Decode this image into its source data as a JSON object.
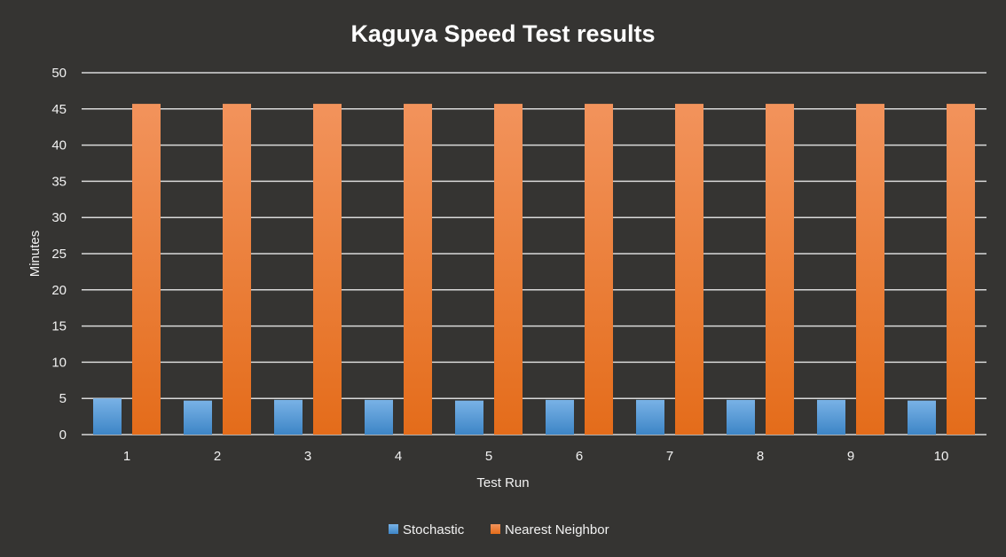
{
  "chart_data": {
    "type": "bar",
    "title": "Kaguya Speed Test results",
    "xlabel": "Test Run",
    "ylabel": "Minutes",
    "ylim": [
      0,
      50
    ],
    "yticks": [
      0,
      5,
      10,
      15,
      20,
      25,
      30,
      35,
      40,
      45,
      50
    ],
    "categories": [
      "1",
      "2",
      "3",
      "4",
      "5",
      "6",
      "7",
      "8",
      "9",
      "10"
    ],
    "series": [
      {
        "name": "Stochastic",
        "color": "#5b9bd5",
        "values": [
          5.0,
          4.7,
          4.8,
          4.8,
          4.7,
          4.8,
          4.8,
          4.8,
          4.8,
          4.7
        ]
      },
      {
        "name": "Nearest Neighbor",
        "color": "#ed7d31",
        "values": [
          45.7,
          45.7,
          45.7,
          45.7,
          45.7,
          45.7,
          45.7,
          45.7,
          45.7,
          45.7
        ]
      }
    ],
    "grid": true,
    "legend_position": "bottom"
  }
}
